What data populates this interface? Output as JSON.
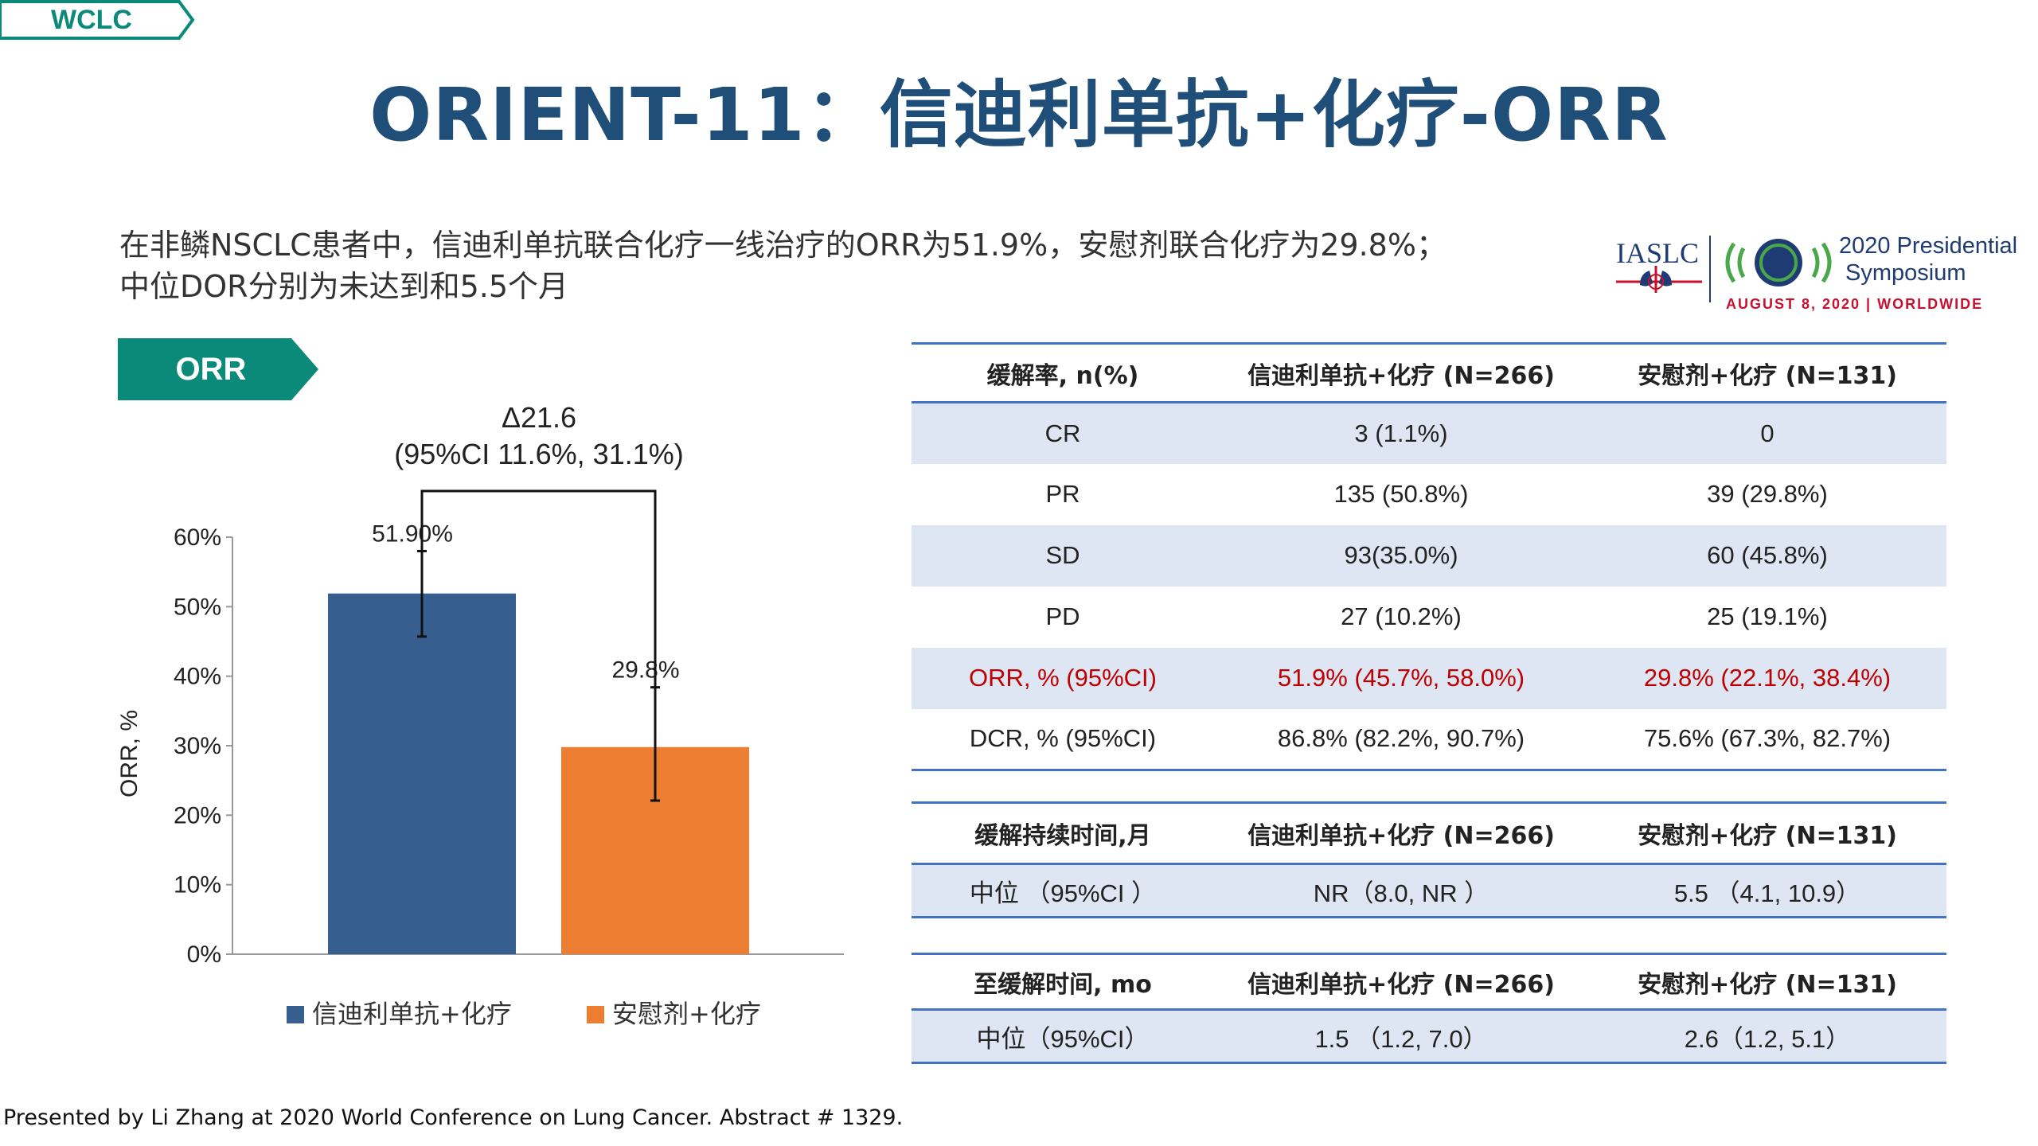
{
  "tag": "WCLC",
  "title": "ORIENT-11：信迪利单抗+化疗-ORR",
  "summary": {
    "line1": "在非鳞NSCLC患者中，信迪利单抗联合化疗一线治疗的ORR为51.9%，安慰剂联合化疗为29.8%；",
    "line2": "中位DOR分别为未达到和5.5个月"
  },
  "logo": {
    "org": "IASLC",
    "line1": "2020 Presidential",
    "line2": "Symposium",
    "date": "AUGUST 8, 2020 | WORLDWIDE",
    "colors": {
      "red": "#c8102e",
      "navy": "#1f3b73",
      "green": "#4aa84a"
    }
  },
  "orr_tag": "ORR",
  "colors": {
    "title": "#1f4e79",
    "teal": "#0b8a7a",
    "series1": "#365f8f",
    "series2": "#ed7d31",
    "table_rule": "#4472c4",
    "table_shade": "#dde6f2",
    "highlight": "#c00000"
  },
  "chart_data": {
    "type": "bar",
    "categories": [
      "信迪利单抗+化疗",
      "安慰剂+化疗"
    ],
    "series": [
      {
        "name": "信迪利单抗+化疗",
        "value": 51.9,
        "ci": [
          45.7,
          58.0
        ],
        "label": "51.90%",
        "color": "#365f8f"
      },
      {
        "name": "安慰剂+化疗",
        "value": 29.8,
        "ci": [
          22.1,
          38.4
        ],
        "label": "29.8%",
        "color": "#ed7d31"
      }
    ],
    "ylabel": "ORR, %",
    "ylim": [
      0,
      60
    ],
    "yticks": [
      "0%",
      "10%",
      "20%",
      "30%",
      "40%",
      "50%",
      "60%"
    ],
    "annotation": {
      "line1": "Δ21.6",
      "line2": "(95%CI 11.6%, 31.1%)"
    },
    "legend": [
      "信迪利单抗+化疗",
      "安慰剂+化疗"
    ],
    "legend_position": "bottom"
  },
  "table_main": {
    "headers": [
      "缓解率, n(%)",
      "信迪利单抗+化疗 (N=266)",
      "安慰剂+化疗 (N=131)"
    ],
    "rows": [
      [
        "CR",
        "3 (1.1%)",
        "0"
      ],
      [
        "PR",
        "135 (50.8%)",
        "39 (29.8%)"
      ],
      [
        "SD",
        "93(35.0%)",
        "60 (45.8%)"
      ],
      [
        "PD",
        "27 (10.2%)",
        "25 (19.1%)"
      ],
      [
        "ORR, % (95%CI)",
        "51.9% (45.7%, 58.0%)",
        "29.8% (22.1%, 38.4%)"
      ],
      [
        "DCR, % (95%CI)",
        "86.8% (82.2%, 90.7%)",
        "75.6% (67.3%, 82.7%)"
      ]
    ]
  },
  "table_dor": {
    "headers": [
      "缓解持续时间,月",
      "信迪利单抗+化疗 (N=266)",
      "安慰剂+化疗 (N=131)"
    ],
    "rows": [
      [
        "中位 （95%CI ）",
        "NR（8.0, NR ）",
        "5.5 （4.1, 10.9）"
      ]
    ]
  },
  "table_ttr": {
    "headers": [
      "至缓解时间, mo",
      "信迪利单抗+化疗 (N=266)",
      "安慰剂+化疗 (N=131)"
    ],
    "rows": [
      [
        "中位（95%CI）",
        "1.5 （1.2, 7.0）",
        "2.6（1.2, 5.1）"
      ]
    ]
  },
  "footer": "Presented by Li Zhang at 2020 World Conference on Lung Cancer. Abstract # 1329."
}
